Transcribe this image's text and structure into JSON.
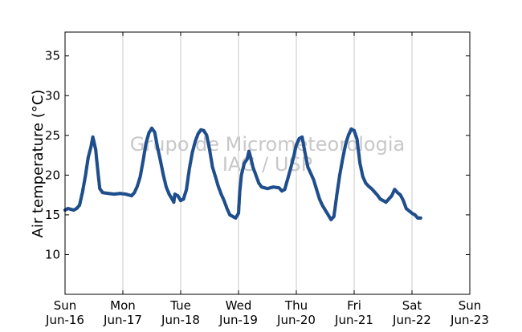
{
  "chart_data": {
    "type": "scatter",
    "ylabel": "Air temperature (°C)",
    "ylim": [
      5,
      38
    ],
    "yticks": [
      10,
      15,
      20,
      25,
      30,
      35
    ],
    "xlim": [
      0,
      7
    ],
    "xticks": [
      {
        "x": 0,
        "day": "Sun",
        "date": "Jun-16"
      },
      {
        "x": 1,
        "day": "Mon",
        "date": "Jun-17"
      },
      {
        "x": 2,
        "day": "Tue",
        "date": "Jun-18"
      },
      {
        "x": 3,
        "day": "Wed",
        "date": "Jun-19"
      },
      {
        "x": 4,
        "day": "Thu",
        "date": "Jun-20"
      },
      {
        "x": 5,
        "day": "Fri",
        "date": "Jun-21"
      },
      {
        "x": 6,
        "day": "Sat",
        "date": "Jun-22"
      },
      {
        "x": 7,
        "day": "Sun",
        "date": "Jun-23"
      }
    ],
    "grid": "vertical",
    "marker_color": "#1f4e8c",
    "watermark": [
      "Grupo de Micrometeorologia",
      "IAG / USP"
    ],
    "series": [
      {
        "points": [
          [
            0.0,
            15.6
          ],
          [
            0.05,
            15.8
          ],
          [
            0.1,
            15.7
          ],
          [
            0.15,
            15.6
          ],
          [
            0.2,
            15.8
          ],
          [
            0.25,
            16.2
          ],
          [
            0.3,
            17.8
          ],
          [
            0.35,
            19.8
          ],
          [
            0.4,
            22.2
          ],
          [
            0.45,
            23.6
          ],
          [
            0.48,
            24.8
          ],
          [
            0.5,
            24.2
          ],
          [
            0.53,
            23.2
          ],
          [
            0.56,
            21.0
          ],
          [
            0.6,
            18.3
          ],
          [
            0.65,
            17.8
          ],
          [
            0.75,
            17.7
          ],
          [
            0.85,
            17.6
          ],
          [
            0.95,
            17.7
          ],
          [
            1.05,
            17.6
          ],
          [
            1.15,
            17.4
          ],
          [
            1.2,
            17.8
          ],
          [
            1.25,
            18.6
          ],
          [
            1.3,
            19.8
          ],
          [
            1.35,
            21.8
          ],
          [
            1.4,
            24.0
          ],
          [
            1.45,
            25.3
          ],
          [
            1.5,
            25.9
          ],
          [
            1.55,
            25.4
          ],
          [
            1.6,
            23.5
          ],
          [
            1.65,
            21.8
          ],
          [
            1.7,
            20.0
          ],
          [
            1.75,
            18.5
          ],
          [
            1.8,
            17.6
          ],
          [
            1.85,
            17.0
          ],
          [
            1.88,
            16.6
          ],
          [
            1.9,
            17.6
          ],
          [
            1.95,
            17.4
          ],
          [
            2.0,
            16.8
          ],
          [
            2.05,
            17.0
          ],
          [
            2.1,
            18.2
          ],
          [
            2.15,
            20.8
          ],
          [
            2.2,
            22.8
          ],
          [
            2.25,
            24.2
          ],
          [
            2.3,
            25.2
          ],
          [
            2.35,
            25.7
          ],
          [
            2.4,
            25.6
          ],
          [
            2.45,
            25.0
          ],
          [
            2.5,
            23.2
          ],
          [
            2.55,
            21.0
          ],
          [
            2.6,
            19.8
          ],
          [
            2.65,
            18.6
          ],
          [
            2.7,
            17.6
          ],
          [
            2.75,
            16.8
          ],
          [
            2.8,
            15.8
          ],
          [
            2.85,
            15.0
          ],
          [
            2.9,
            14.8
          ],
          [
            2.95,
            14.6
          ],
          [
            3.0,
            15.2
          ],
          [
            3.02,
            17.8
          ],
          [
            3.05,
            20.0
          ],
          [
            3.1,
            21.5
          ],
          [
            3.15,
            22.0
          ],
          [
            3.18,
            23.0
          ],
          [
            3.2,
            22.5
          ],
          [
            3.25,
            21.0
          ],
          [
            3.3,
            20.0
          ],
          [
            3.35,
            19.0
          ],
          [
            3.4,
            18.5
          ],
          [
            3.5,
            18.3
          ],
          [
            3.6,
            18.5
          ],
          [
            3.7,
            18.4
          ],
          [
            3.75,
            18.0
          ],
          [
            3.8,
            18.2
          ],
          [
            3.85,
            19.5
          ],
          [
            3.9,
            20.8
          ],
          [
            3.95,
            22.2
          ],
          [
            4.0,
            23.8
          ],
          [
            4.05,
            24.6
          ],
          [
            4.1,
            24.8
          ],
          [
            4.15,
            22.8
          ],
          [
            4.2,
            21.0
          ],
          [
            4.25,
            20.2
          ],
          [
            4.3,
            19.4
          ],
          [
            4.35,
            18.2
          ],
          [
            4.4,
            17.0
          ],
          [
            4.45,
            16.2
          ],
          [
            4.5,
            15.6
          ],
          [
            4.55,
            15.0
          ],
          [
            4.6,
            14.4
          ],
          [
            4.65,
            14.8
          ],
          [
            4.7,
            17.5
          ],
          [
            4.75,
            20.0
          ],
          [
            4.8,
            22.0
          ],
          [
            4.85,
            23.8
          ],
          [
            4.9,
            25.0
          ],
          [
            4.95,
            25.8
          ],
          [
            5.0,
            25.6
          ],
          [
            5.05,
            24.5
          ],
          [
            5.1,
            21.5
          ],
          [
            5.15,
            19.8
          ],
          [
            5.2,
            19.0
          ],
          [
            5.25,
            18.6
          ],
          [
            5.3,
            18.3
          ],
          [
            5.4,
            17.5
          ],
          [
            5.45,
            17.0
          ],
          [
            5.5,
            16.8
          ],
          [
            5.55,
            16.6
          ],
          [
            5.6,
            17.0
          ],
          [
            5.65,
            17.4
          ],
          [
            5.7,
            18.2
          ],
          [
            5.75,
            17.8
          ],
          [
            5.8,
            17.5
          ],
          [
            5.85,
            16.8
          ],
          [
            5.9,
            15.8
          ],
          [
            5.95,
            15.5
          ],
          [
            6.0,
            15.2
          ],
          [
            6.05,
            15.0
          ],
          [
            6.1,
            14.6
          ],
          [
            6.15,
            14.6
          ]
        ]
      }
    ]
  }
}
